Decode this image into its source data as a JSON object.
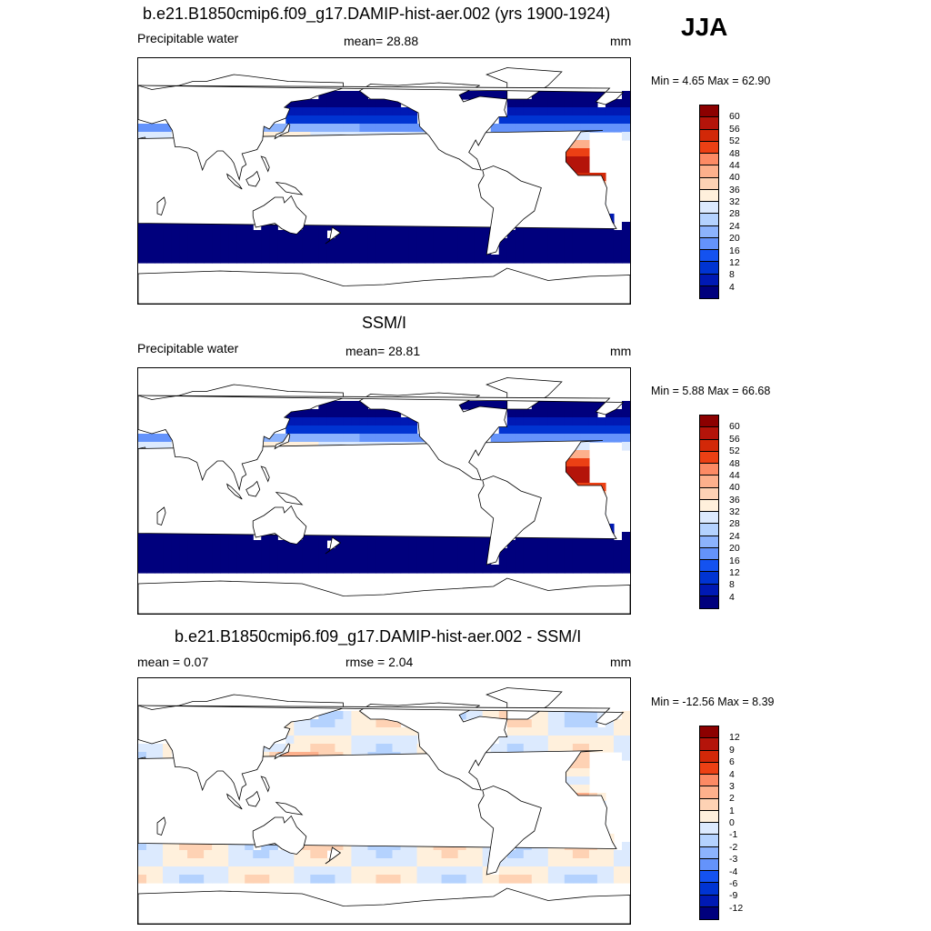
{
  "season": "JJA",
  "colors": {
    "wet": [
      "#00007d",
      "#0019b4",
      "#0034d2",
      "#1452f0",
      "#3c73fa",
      "#6493fb",
      "#8cb3fd",
      "#b4d2fe",
      "#dceafe",
      "#fff0dc",
      "#fed2b4",
      "#fdb08c",
      "#fc8a64",
      "#f8643c",
      "#ec4014",
      "#d22808",
      "#b4140a",
      "#8c0000"
    ],
    "diff": [
      "#00007d",
      "#0019b4",
      "#0034d2",
      "#1452f0",
      "#3c73fa",
      "#6493fb",
      "#8cb3fd",
      "#b4d2fe",
      "#dceafe",
      "#fff0dc",
      "#fed2b4",
      "#fdb08c",
      "#fc8a64",
      "#f8643c",
      "#ec4014",
      "#d22808",
      "#b4140a",
      "#8c0000"
    ]
  },
  "panels": [
    {
      "title": "b.e21.B1850cmip6.f09_g17.DAMIP-hist-aer.002 (yrs 1900-1924)",
      "left_label": "Precipitable water",
      "center_label": "mean=  28.88",
      "units": "mm",
      "minmax": "Min =   4.65 Max =  62.90",
      "colorbar_labels": [
        "60",
        "56",
        "52",
        "48",
        "44",
        "40",
        "36",
        "32",
        "28",
        "24",
        "20",
        "16",
        "12",
        "8",
        "4"
      ],
      "field": "model"
    },
    {
      "title": "SSM/I",
      "left_label": "Precipitable water",
      "center_label": "mean=  28.81",
      "units": "mm",
      "minmax": "Min =   5.88 Max =  66.68",
      "colorbar_labels": [
        "60",
        "56",
        "52",
        "48",
        "44",
        "40",
        "36",
        "32",
        "28",
        "24",
        "20",
        "16",
        "12",
        "8",
        "4"
      ],
      "field": "obs"
    },
    {
      "title": "b.e21.B1850cmip6.f09_g17.DAMIP-hist-aer.002 - SSM/I",
      "left_label": "mean =   0.07",
      "center_label": "rmse =   2.04",
      "units": "mm",
      "minmax": "Min = -12.56 Max =   8.39",
      "colorbar_labels": [
        "12",
        "9",
        "6",
        "4",
        "3",
        "2",
        "1",
        "0",
        "-1",
        "-2",
        "-3",
        "-4",
        "-6",
        "-9",
        "-12"
      ],
      "field": "diff"
    }
  ]
}
